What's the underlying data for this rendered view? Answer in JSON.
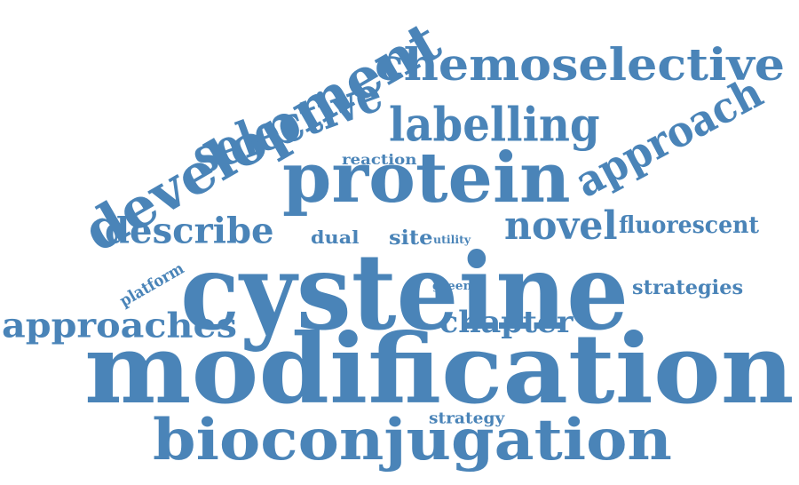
{
  "words": {
    "modification": "modification",
    "cysteine": "cysteine",
    "protein": "protein",
    "bioconjugation": "bioconjugation",
    "development": "development",
    "chemoselective": "chemoselective",
    "labelling": "labelling",
    "selective": "selective",
    "approach": "approach",
    "approaches": "approaches",
    "describe": "describe",
    "novel": "novel",
    "chapter": "chapter",
    "fluorescent": "fluorescent",
    "strategies": "strategies",
    "dual": "dual",
    "site": "site",
    "reaction": "reaction",
    "platform": "platform",
    "utility": "utility",
    "green": "green",
    "strategy": "strategy"
  },
  "colors": {
    "word": "#4a84b8",
    "background": "#ffffff"
  }
}
